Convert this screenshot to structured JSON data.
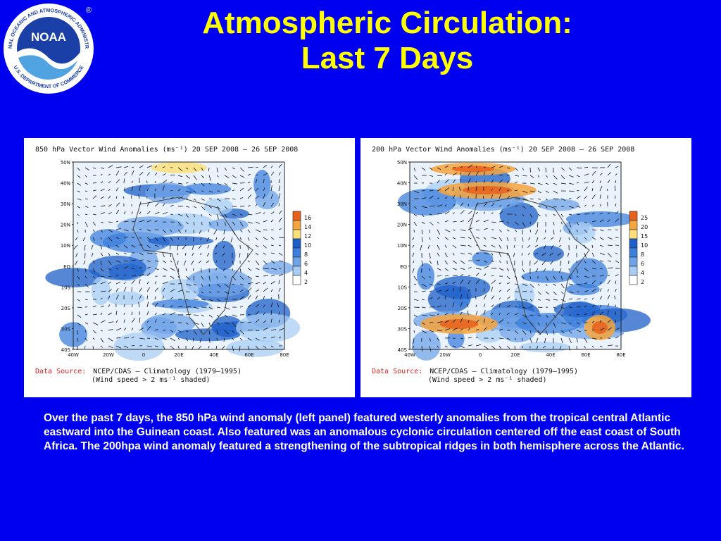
{
  "slide": {
    "title_line1": "Atmospheric Circulation:",
    "title_line2": "Last 7 Days",
    "caption": "Over the past 7 days, the 850 hPa wind anomaly (left panel) featured westerly anomalies from the tropical central Atlantic eastward into the Guinean coast. Also featured was an anomalous cyclonic circulation centered off the east coast of South Africa.  The 200hpa wind anomaly featured a strengthening of the subtropical ridges in both hemisphere across the Atlantic."
  },
  "logo": {
    "ring_text": "NATIONAL OCEANIC AND ATMOSPHERIC ADMINISTRATION",
    "ring_text_bottom": "U.S. DEPARTMENT OF COMMERCE",
    "center_text": "NOAA",
    "reg_mark": "®"
  },
  "colors": {
    "background": "#0000f0",
    "title": "#ffff00",
    "caption": "#ffffff",
    "source_label": "#e02020"
  },
  "panels": [
    {
      "title": "850 hPa Vector Wind Anomalies (ms⁻¹) 20 SEP 2008 – 26 SEP 2008",
      "lat_labels": [
        "50N",
        "40N",
        "30N",
        "20N",
        "10N",
        "EQ",
        "10S",
        "20S",
        "30S",
        "40S"
      ],
      "lon_labels": [
        "40W",
        "20W",
        "0",
        "20E",
        "40E",
        "60E",
        "80E"
      ],
      "legend": [
        "16",
        "14",
        "12",
        "10",
        "8",
        "6",
        "4",
        "2"
      ],
      "legend_colors": [
        "#e8601c",
        "#f4a53c",
        "#fbe07a",
        "#1c5fc8",
        "#3c7fdc",
        "#6fa3e8",
        "#a8cdf4",
        "#ffffff"
      ],
      "source_label": "Data Source:",
      "source_line1": "NCEP/CDAS – Climatology (1979–1995)",
      "source_line2": "(Wind speed > 2 ms⁻¹ shaded)"
    },
    {
      "title": "200 hPa Vector Wind Anomalies (ms⁻¹) 20 SEP 2008 – 26 SEP 2008",
      "lat_labels": [
        "50N",
        "40N",
        "30N",
        "20N",
        "10N",
        "EQ",
        "10S",
        "20S",
        "30S",
        "40S"
      ],
      "lon_labels": [
        "40W",
        "20W",
        "0",
        "20E",
        "40E",
        "60E",
        "80E"
      ],
      "legend": [
        "25",
        "20",
        "15",
        "10",
        "8",
        "6",
        "4",
        "2"
      ],
      "legend_colors": [
        "#e8601c",
        "#f4a53c",
        "#fbe07a",
        "#1c5fc8",
        "#3c7fdc",
        "#6fa3e8",
        "#a8cdf4",
        "#ffffff"
      ],
      "source_label": "Data Source:",
      "source_line1": "NCEP/CDAS – Climatology (1979–1995)",
      "source_line2": "(Wind speed > 2 ms⁻¹ shaded)"
    }
  ]
}
